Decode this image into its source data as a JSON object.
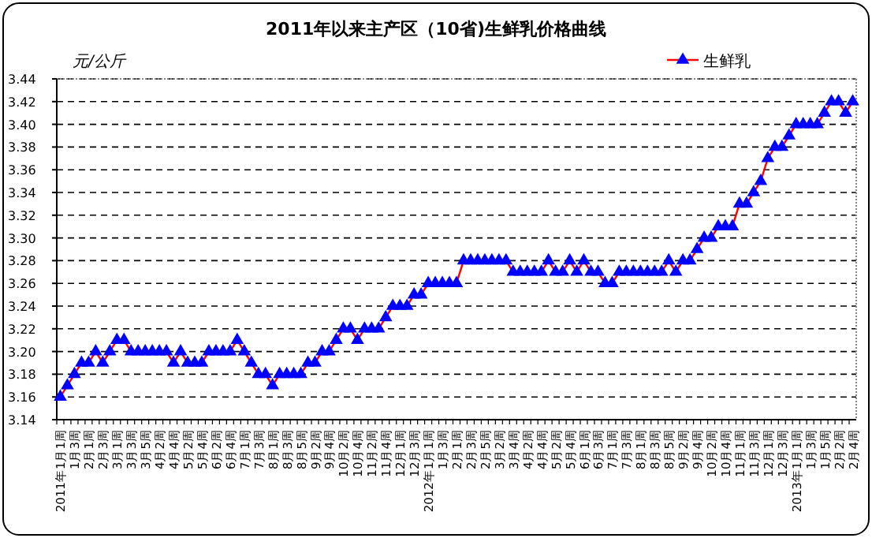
{
  "chart_data": {
    "type": "line",
    "title": "2011年以来主产区（10省)生鲜乳价格曲线",
    "ylabel": "元/公斤",
    "categories": [
      "2011年1月1周",
      null,
      "1月3周",
      null,
      "2月1周",
      null,
      "2月3周",
      null,
      "3月1周",
      null,
      "3月3周",
      null,
      "3月5周",
      null,
      "4月2周",
      null,
      "4月4周",
      null,
      "5月2周",
      null,
      "5月4周",
      null,
      "6月2周",
      null,
      "6月4周",
      null,
      "7月1周",
      null,
      "7月3周",
      null,
      "8月1周",
      null,
      "8月3周",
      null,
      "8月5周",
      null,
      "9月2周",
      null,
      "9月4周",
      null,
      "10月2周",
      null,
      "10月4周",
      null,
      "11月2周",
      null,
      "11月4周",
      null,
      "12月1周",
      null,
      "12月3周",
      null,
      "2012年1月1周",
      null,
      "1月3周",
      null,
      "2月1周",
      null,
      "2月3周",
      null,
      "2月5周",
      null,
      "3月2周",
      null,
      "3月4周",
      null,
      "4月2周",
      null,
      "4月4周",
      null,
      "5月2周",
      null,
      "5月4周",
      null,
      "6月1周",
      null,
      "6月3周",
      null,
      "7月1周",
      null,
      "7月3周",
      null,
      "8月1周",
      null,
      "8月3周",
      null,
      "8月5周",
      null,
      "9月2周",
      null,
      "9月4周",
      null,
      "10月2周",
      null,
      "10月4周",
      null,
      "11月1周",
      null,
      "11月3周",
      null,
      "12月1周",
      null,
      "12月3周",
      null,
      "2013年1月1周",
      null,
      "1月3周",
      null,
      "1月5周",
      null,
      "2月2周",
      null,
      "2月4周"
    ],
    "series": [
      {
        "name": "生鲜乳",
        "color": "#ff0000",
        "values": [
          3.16,
          3.17,
          3.18,
          3.19,
          3.19,
          3.2,
          3.19,
          3.2,
          3.21,
          3.21,
          3.2,
          3.2,
          3.2,
          3.2,
          3.2,
          3.2,
          3.19,
          3.2,
          3.19,
          3.19,
          3.19,
          3.2,
          3.2,
          3.2,
          3.2,
          3.21,
          3.2,
          3.19,
          3.18,
          3.18,
          3.17,
          3.18,
          3.18,
          3.18,
          3.18,
          3.19,
          3.19,
          3.2,
          3.2,
          3.21,
          3.22,
          3.22,
          3.21,
          3.22,
          3.22,
          3.22,
          3.23,
          3.24,
          3.24,
          3.24,
          3.25,
          3.25,
          3.26,
          3.26,
          3.26,
          3.26,
          3.26,
          3.28,
          3.28,
          3.28,
          3.28,
          3.28,
          3.28,
          3.28,
          3.27,
          3.27,
          3.27,
          3.27,
          3.27,
          3.28,
          3.27,
          3.27,
          3.28,
          3.27,
          3.28,
          3.27,
          3.27,
          3.26,
          3.26,
          3.27,
          3.27,
          3.27,
          3.27,
          3.27,
          3.27,
          3.27,
          3.28,
          3.27,
          3.28,
          3.28,
          3.29,
          3.3,
          3.3,
          3.31,
          3.31,
          3.31,
          3.33,
          3.33,
          3.34,
          3.35,
          3.37,
          3.38,
          3.38,
          3.39,
          3.4,
          3.4,
          3.4,
          3.4,
          3.41,
          3.42,
          3.42,
          3.41,
          3.42
        ]
      }
    ],
    "ylim": [
      3.14,
      3.44
    ],
    "yticks": [
      {
        "value": 3.14,
        "label": "3.14"
      },
      {
        "value": 3.16,
        "label": "3.16"
      },
      {
        "value": 3.18,
        "label": "3.18"
      },
      {
        "value": 3.2,
        "label": "3.20"
      },
      {
        "value": 3.22,
        "label": "3.22"
      },
      {
        "value": 3.24,
        "label": "3.24"
      },
      {
        "value": 3.26,
        "label": "3.26"
      },
      {
        "value": 3.28,
        "label": "3.28"
      },
      {
        "value": 3.3,
        "label": "3.30"
      },
      {
        "value": 3.32,
        "label": "3.32"
      },
      {
        "value": 3.34,
        "label": "3.34"
      },
      {
        "value": 3.36,
        "label": "3.36"
      },
      {
        "value": 3.38,
        "label": "3.38"
      },
      {
        "value": 3.4,
        "label": "3.40"
      },
      {
        "value": 3.42,
        "label": "3.42"
      },
      {
        "value": 3.44,
        "label": "3.44"
      }
    ],
    "grid": "y",
    "legend": "top right",
    "marker": "triangle",
    "line_style": "solid"
  }
}
